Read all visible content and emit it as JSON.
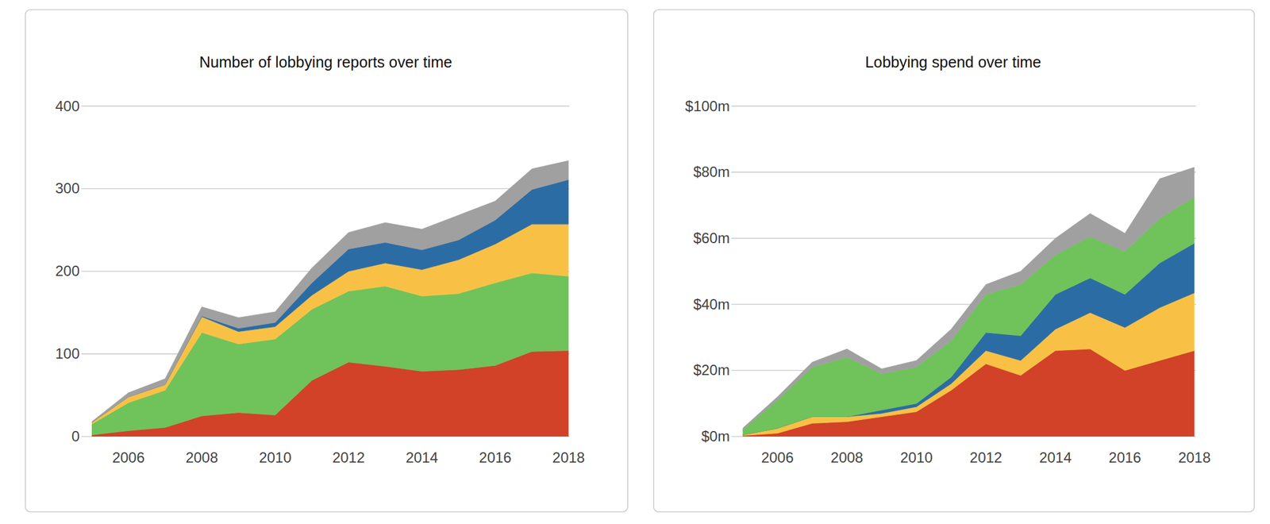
{
  "chart_data": [
    {
      "type": "area",
      "title": "Number of lobbying reports over time",
      "stacked": true,
      "grid": true,
      "x": [
        2005,
        2006,
        2007,
        2008,
        2009,
        2010,
        2011,
        2012,
        2013,
        2014,
        2015,
        2016,
        2017,
        2018
      ],
      "xlim": [
        2005,
        2018
      ],
      "xticks": [
        2006,
        2008,
        2010,
        2012,
        2014,
        2016,
        2018
      ],
      "ylim": [
        0,
        400
      ],
      "yticks": [
        0,
        100,
        200,
        300,
        400
      ],
      "series": [
        {
          "color": "#d14228",
          "values": [
            2,
            7,
            11,
            25,
            29,
            26,
            68,
            90,
            85,
            79,
            81,
            86,
            103,
            104
          ]
        },
        {
          "color": "#6fc35a",
          "values": [
            13,
            34,
            45,
            101,
            83,
            92,
            86,
            86,
            97,
            91,
            92,
            100,
            95,
            90
          ]
        },
        {
          "color": "#f8c146",
          "values": [
            2,
            7,
            7,
            19,
            15,
            15,
            17,
            24,
            28,
            32,
            41,
            47,
            59,
            63
          ]
        },
        {
          "color": "#2c6ca4",
          "values": [
            0,
            0,
            0,
            1,
            4,
            5,
            15,
            27,
            25,
            24,
            24,
            29,
            42,
            54
          ]
        },
        {
          "color": "#a0a0a0",
          "values": [
            1,
            5,
            7,
            11,
            13,
            13,
            18,
            20,
            24,
            25,
            30,
            23,
            25,
            23
          ]
        }
      ]
    },
    {
      "type": "area",
      "title": "Lobbying spend over time",
      "stacked": true,
      "grid": true,
      "x": [
        2005,
        2006,
        2007,
        2008,
        2009,
        2010,
        2011,
        2012,
        2013,
        2014,
        2015,
        2016,
        2017,
        2018
      ],
      "xlim": [
        2005,
        2018
      ],
      "xticks": [
        2006,
        2008,
        2010,
        2012,
        2014,
        2016,
        2018
      ],
      "ylim": [
        0,
        100
      ],
      "yticks": [
        {
          "value": 0,
          "label": "$0m"
        },
        {
          "value": 20,
          "label": "$20m"
        },
        {
          "value": 40,
          "label": "$40m"
        },
        {
          "value": 60,
          "label": "$60m"
        },
        {
          "value": 80,
          "label": "$80m"
        },
        {
          "value": 100,
          "label": "$100m"
        }
      ],
      "series": [
        {
          "color": "#d14228",
          "values": [
            0.3,
            1,
            4,
            4.5,
            6,
            7.5,
            14,
            22,
            18.5,
            26,
            26.5,
            20,
            23,
            26
          ]
        },
        {
          "color": "#f8c146",
          "values": [
            0.2,
            1.5,
            2,
            1.5,
            1,
            1.5,
            2,
            4,
            4.5,
            6.5,
            11,
            13,
            16,
            17.5
          ]
        },
        {
          "color": "#2c6ca4",
          "values": [
            0,
            0,
            0,
            0,
            1,
            1,
            2,
            5.5,
            7.5,
            10.5,
            10.5,
            10,
            13.5,
            15
          ]
        },
        {
          "color": "#6fc35a",
          "values": [
            1.5,
            8.5,
            15,
            18,
            11,
            11,
            11,
            11.5,
            15.5,
            12,
            12.5,
            13,
            13.5,
            14
          ]
        },
        {
          "color": "#a0a0a0",
          "values": [
            0.5,
            1,
            1.5,
            2.5,
            1.5,
            2,
            3.5,
            3,
            4,
            5,
            7,
            5.5,
            12,
            9
          ]
        }
      ]
    }
  ]
}
